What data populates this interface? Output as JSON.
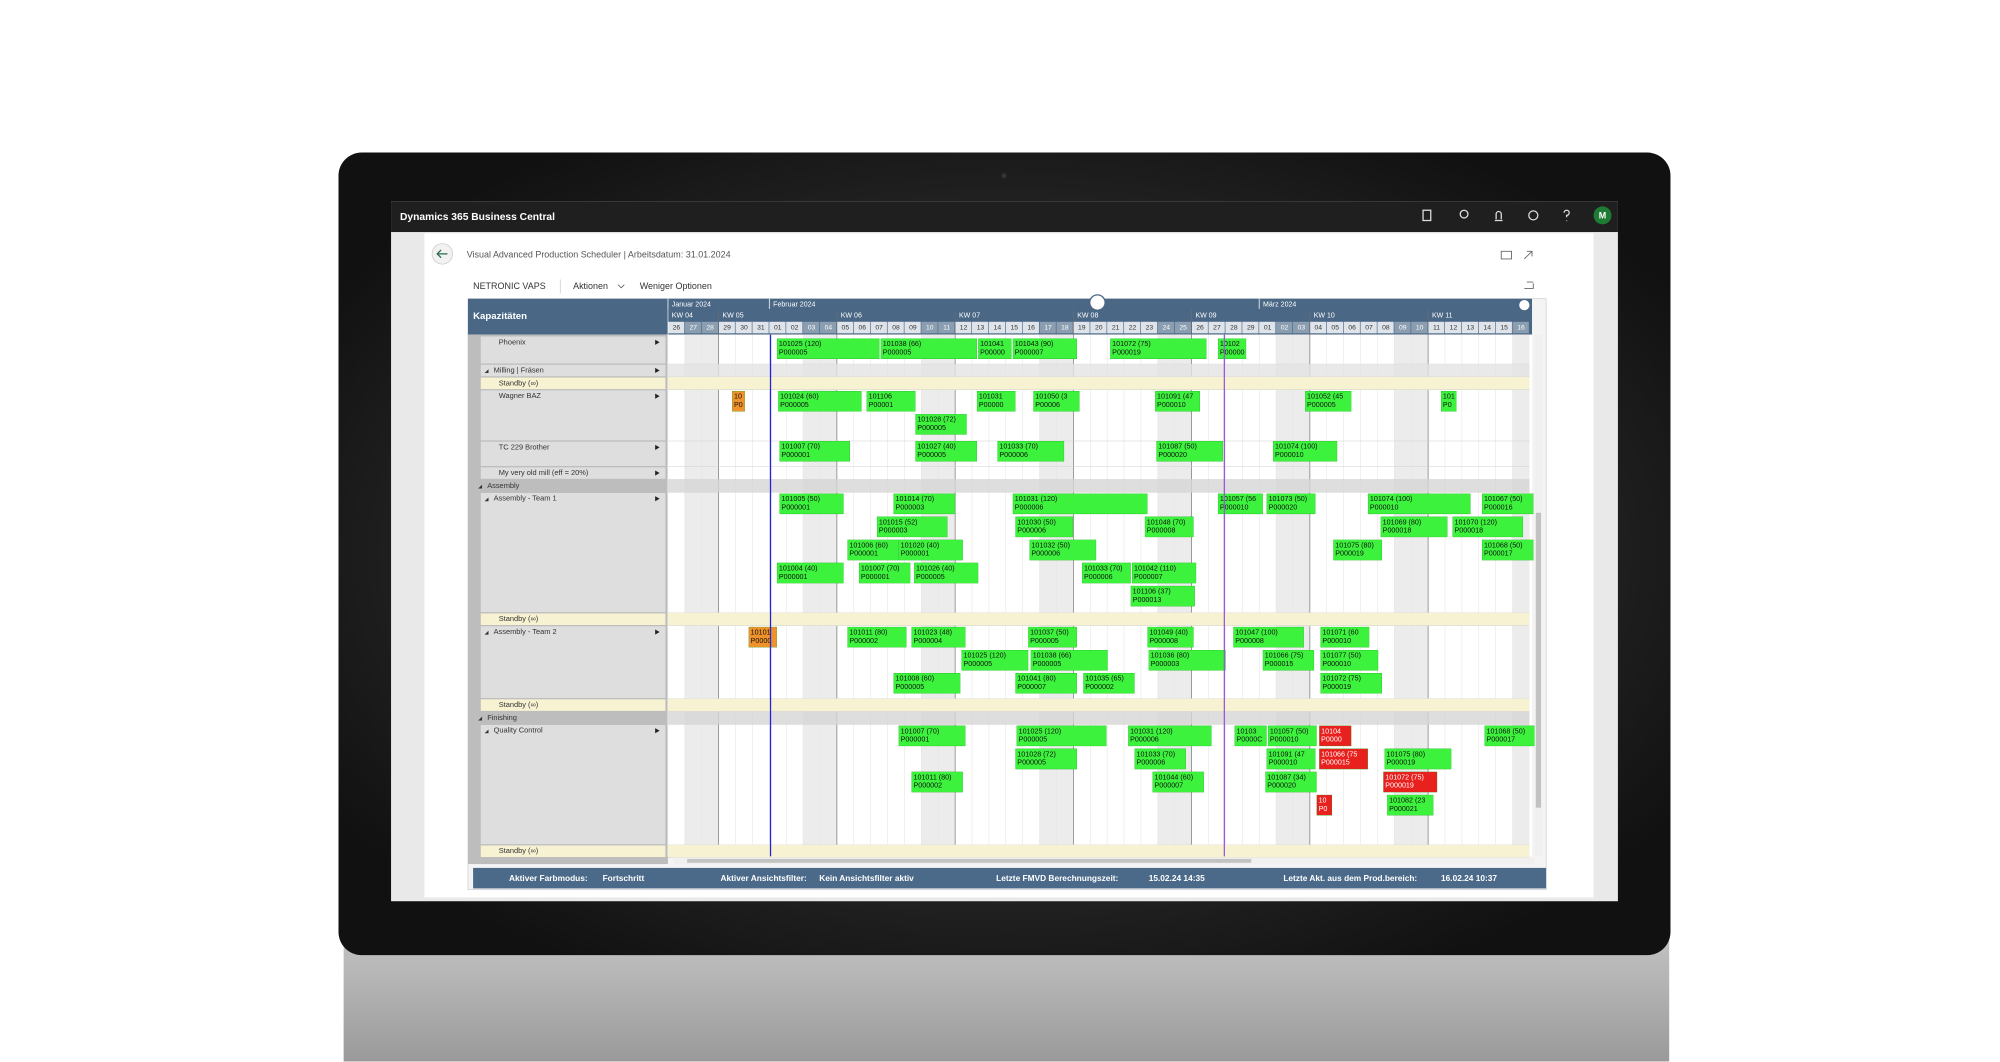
{
  "app": {
    "title": "Dynamics 365 Business Central",
    "user": "M"
  },
  "page": {
    "title": "Visual Advanced Production Scheduler | Arbeitsdatum: 31.01.2024",
    "actions": [
      "NETRONIC VAPS",
      "Aktionen",
      "Weniger Optionen"
    ]
  },
  "scheduler": {
    "panel_title": "Kapazitäten",
    "months": [
      "Januar 2024",
      "Februar 2024",
      "März 2024"
    ],
    "weeks": [
      "KW 04",
      "KW 05",
      "KW 06",
      "KW 07",
      "KW 08",
      "KW 09",
      "KW 10",
      "KW 11"
    ],
    "days": [
      "26",
      "27",
      "28",
      "29",
      "30",
      "31",
      "01",
      "02",
      "03",
      "04",
      "05",
      "06",
      "07",
      "08",
      "09",
      "10",
      "11",
      "12",
      "13",
      "14",
      "15",
      "16",
      "17",
      "18",
      "19",
      "20",
      "21",
      "22",
      "23",
      "24",
      "25",
      "26",
      "27",
      "28",
      "29",
      "01",
      "02",
      "03",
      "04",
      "05",
      "06",
      "07",
      "08",
      "09",
      "10",
      "11",
      "12",
      "13",
      "14",
      "15",
      "16"
    ],
    "resources": [
      "Phoenix",
      "Milling | Fräsen",
      "Standby (∞)",
      "Wagner BAZ",
      "TC 229 Brother",
      "My very old mill (eff = 20%)",
      "Assembly",
      "Assembly - Team 1",
      "Standby (∞)",
      "Assembly - Team 2",
      "Standby (∞)",
      "Finishing",
      "Quality Control",
      "Standby (∞)"
    ],
    "jobs": [
      {
        "label": "101025 (120)",
        "order": "P000005",
        "color": "#3df23d"
      },
      {
        "label": "101038 (66)",
        "order": "P000005",
        "color": "#3df23d"
      },
      {
        "label": "101041",
        "order": "P00000",
        "color": "#3df23d"
      },
      {
        "label": "101043 (90)",
        "order": "P000007",
        "color": "#3df23d"
      },
      {
        "label": "101072 (75)",
        "order": "P000019",
        "color": "#3df23d"
      },
      {
        "label": "10102",
        "order": "P00000",
        "color": "#3df23d"
      },
      {
        "label": "10",
        "order": "P0",
        "color": "#f0922b"
      },
      {
        "label": "101024 (60)",
        "order": "P000005",
        "color": "#3df23d"
      },
      {
        "label": "101106",
        "order": "P00001",
        "color": "#3df23d"
      },
      {
        "label": "101031",
        "order": "P00000",
        "color": "#3df23d"
      },
      {
        "label": "101050 (3",
        "order": "P00006",
        "color": "#3df23d"
      },
      {
        "label": "101091 (47",
        "order": "P000010",
        "color": "#3df23d"
      },
      {
        "label": "101052 (45",
        "order": "P000005",
        "color": "#3df23d"
      },
      {
        "label": "101028 (72)",
        "order": "P000005",
        "color": "#3df23d"
      },
      {
        "label": "101",
        "order": "P0",
        "color": "#3df23d"
      },
      {
        "label": "101007 (70)",
        "order": "P000001",
        "color": "#3df23d"
      },
      {
        "label": "101027 (40)",
        "order": "P000005",
        "color": "#3df23d"
      },
      {
        "label": "101033 (70)",
        "order": "P000006",
        "color": "#3df23d"
      },
      {
        "label": "101087 (50)",
        "order": "P000020",
        "color": "#3df23d"
      },
      {
        "label": "101074 (100)",
        "order": "P000010",
        "color": "#3df23d"
      },
      {
        "label": "101005 (50)",
        "order": "P000001",
        "color": "#3df23d"
      },
      {
        "label": "101014 (70)",
        "order": "P000003",
        "color": "#3df23d"
      },
      {
        "label": "101031 (120)",
        "order": "P000006",
        "color": "#3df23d"
      },
      {
        "label": "101057 (56",
        "order": "P000010",
        "color": "#3df23d"
      },
      {
        "label": "101073 (50)",
        "order": "P000020",
        "color": "#3df23d"
      },
      {
        "label": "101074 (100)",
        "order": "P000010",
        "color": "#3df23d"
      },
      {
        "label": "101067 (50)",
        "order": "P000016",
        "color": "#3df23d"
      },
      {
        "label": "101015 (52)",
        "order": "P000003",
        "color": "#3df23d"
      },
      {
        "label": "101030 (50)",
        "order": "P000006",
        "color": "#3df23d"
      },
      {
        "label": "101048 (70)",
        "order": "P000008",
        "color": "#3df23d"
      },
      {
        "label": "101069 (80)",
        "order": "P000018",
        "color": "#3df23d"
      },
      {
        "label": "101070 (120)",
        "order": "P000018",
        "color": "#3df23d"
      },
      {
        "label": "101006 (60)",
        "order": "P000001",
        "color": "#3df23d"
      },
      {
        "label": "101020 (40)",
        "order": "P000001",
        "color": "#3df23d"
      },
      {
        "label": "101032 (50)",
        "order": "P000006",
        "color": "#3df23d"
      },
      {
        "label": "101075 (80)",
        "order": "P000019",
        "color": "#3df23d"
      },
      {
        "label": "101068 (50)",
        "order": "P000017",
        "color": "#3df23d"
      },
      {
        "label": "101004 (40)",
        "order": "P000001",
        "color": "#3df23d"
      },
      {
        "label": "101007 (70)",
        "order": "P000001",
        "color": "#3df23d"
      },
      {
        "label": "101026 (40)",
        "order": "P000005",
        "color": "#3df23d"
      },
      {
        "label": "101033 (70)",
        "order": "P000006",
        "color": "#3df23d"
      },
      {
        "label": "101042 (110)",
        "order": "P000007",
        "color": "#3df23d"
      },
      {
        "label": "101106 (37)",
        "order": "P000013",
        "color": "#3df23d"
      },
      {
        "label": "10101",
        "order": "P0000",
        "color": "#f0922b"
      },
      {
        "label": "101011 (80)",
        "order": "P000002",
        "color": "#3df23d"
      },
      {
        "label": "101023 (48)",
        "order": "P000004",
        "color": "#3df23d"
      },
      {
        "label": "101037 (50)",
        "order": "P000005",
        "color": "#3df23d"
      },
      {
        "label": "101049 (40)",
        "order": "P000008",
        "color": "#3df23d"
      },
      {
        "label": "101047 (100)",
        "order": "P000008",
        "color": "#3df23d"
      },
      {
        "label": "101071 (60",
        "order": "P000010",
        "color": "#3df23d"
      },
      {
        "label": "101025 (120)",
        "order": "P000005",
        "color": "#3df23d"
      },
      {
        "label": "101038 (66)",
        "order": "P000005",
        "color": "#3df23d"
      },
      {
        "label": "101036 (80)",
        "order": "P000003",
        "color": "#3df23d"
      },
      {
        "label": "101066 (75)",
        "order": "P000015",
        "color": "#3df23d"
      },
      {
        "label": "101077 (50)",
        "order": "P000010",
        "color": "#3df23d"
      },
      {
        "label": "101008 (60)",
        "order": "P000005",
        "color": "#3df23d"
      },
      {
        "label": "101041 (80)",
        "order": "P000007",
        "color": "#3df23d"
      },
      {
        "label": "101035 (65)",
        "order": "P000002",
        "color": "#3df23d"
      },
      {
        "label": "101072 (75)",
        "order": "P000019",
        "color": "#3df23d"
      },
      {
        "label": "101007 (70)",
        "order": "P000001",
        "color": "#3df23d"
      },
      {
        "label": "101025 (120)",
        "order": "P000005",
        "color": "#3df23d"
      },
      {
        "label": "101031 (120)",
        "order": "P000006",
        "color": "#3df23d"
      },
      {
        "label": "10103",
        "order": "P0000C",
        "color": "#3df23d"
      },
      {
        "label": "101057 (50)",
        "order": "P000010",
        "color": "#3df23d"
      },
      {
        "label": "10104",
        "order": "P0000",
        "color": "#e8201e"
      },
      {
        "label": "101068 (50)",
        "order": "P000017",
        "color": "#3df23d"
      },
      {
        "label": "101028 (72)",
        "order": "P000005",
        "color": "#3df23d"
      },
      {
        "label": "101033 (70)",
        "order": "P000006",
        "color": "#3df23d"
      },
      {
        "label": "101091 (47",
        "order": "P000010",
        "color": "#3df23d"
      },
      {
        "label": "101066 (75",
        "order": "P000015",
        "color": "#e8201e"
      },
      {
        "label": "101075 (80)",
        "order": "P000019",
        "color": "#3df23d"
      },
      {
        "label": "101011 (80)",
        "order": "P000002",
        "color": "#3df23d"
      },
      {
        "label": "101044 (60)",
        "order": "P000007",
        "color": "#3df23d"
      },
      {
        "label": "101087 (34)",
        "order": "P000020",
        "color": "#3df23d"
      },
      {
        "label": "101072 (75)",
        "order": "P000019",
        "color": "#e8201e"
      },
      {
        "label": "101082 (23",
        "order": "P000021",
        "color": "#3df23d"
      },
      {
        "label": "10",
        "order": "P0",
        "color": "#e8201e"
      }
    ]
  },
  "status_bar": [
    {
      "label": "Aktiver Farbmodus:",
      "value": "Fortschritt"
    },
    {
      "label": "Aktiver Ansichtsfilter:",
      "value": "Kein Ansichtsfilter aktiv"
    },
    {
      "label": "Letzte FMVD Berechnungszeit:",
      "value": "15.02.24 14:35"
    },
    {
      "label": "Letzte Akt. aus dem Prod.bereich:",
      "value": "16.02.24 10:37"
    }
  ]
}
